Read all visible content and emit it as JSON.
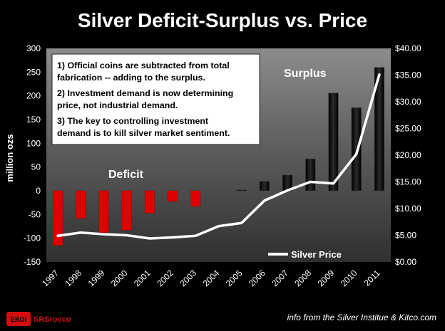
{
  "chart_data": {
    "type": "bar+line",
    "title": "Silver Deficit-Surplus vs. Price",
    "ylabel": "million ozs",
    "ylim": [
      -150,
      300
    ],
    "y_ticks": [
      "300",
      "250",
      "200",
      "150",
      "100",
      "50",
      "0",
      "-50",
      "-100",
      "-150"
    ],
    "y2lim": [
      0,
      40
    ],
    "y2_ticks": [
      "$40.00",
      "$35.00",
      "$30.00",
      "$25.00",
      "$20.00",
      "$15.00",
      "$10.00",
      "$5.00",
      "$0.00"
    ],
    "categories": [
      "1997",
      "1998",
      "1999",
      "2000",
      "2001",
      "2002",
      "2003",
      "2004",
      "2005",
      "2006",
      "2007",
      "2008",
      "2009",
      "2010",
      "2011"
    ],
    "series": [
      {
        "name": "Deficit-Surplus",
        "kind": "bar",
        "values": [
          -115,
          -58,
          -88,
          -83,
          -47,
          -22,
          -33,
          0,
          2,
          20,
          33,
          67,
          206,
          175,
          260
        ]
      },
      {
        "name": "Silver Price",
        "kind": "line",
        "axis": "secondary",
        "values": [
          4.9,
          5.5,
          5.2,
          5.0,
          4.4,
          4.6,
          4.9,
          6.7,
          7.3,
          11.5,
          13.4,
          15.0,
          14.7,
          20.2,
          35.1
        ]
      }
    ],
    "bar_colors": {
      "negative": "#e00000",
      "positive": "#0c0c0c"
    },
    "annotations": {
      "deficit": "Deficit",
      "surplus": "Surplus",
      "note_lines": [
        "1)  Official coins are subtracted from total",
        "fabrication -- adding to the surplus.",
        "2)  Investment demand is now determining",
        "price, not industrial demand.",
        "3)  The key to controlling investment",
        "demand is to kill silver market sentiment."
      ]
    },
    "legend": "Silver Price",
    "source": "info from the Silver Institue & Kitco.com",
    "brand": "SRSrocco",
    "brand_badge": "EROI"
  }
}
